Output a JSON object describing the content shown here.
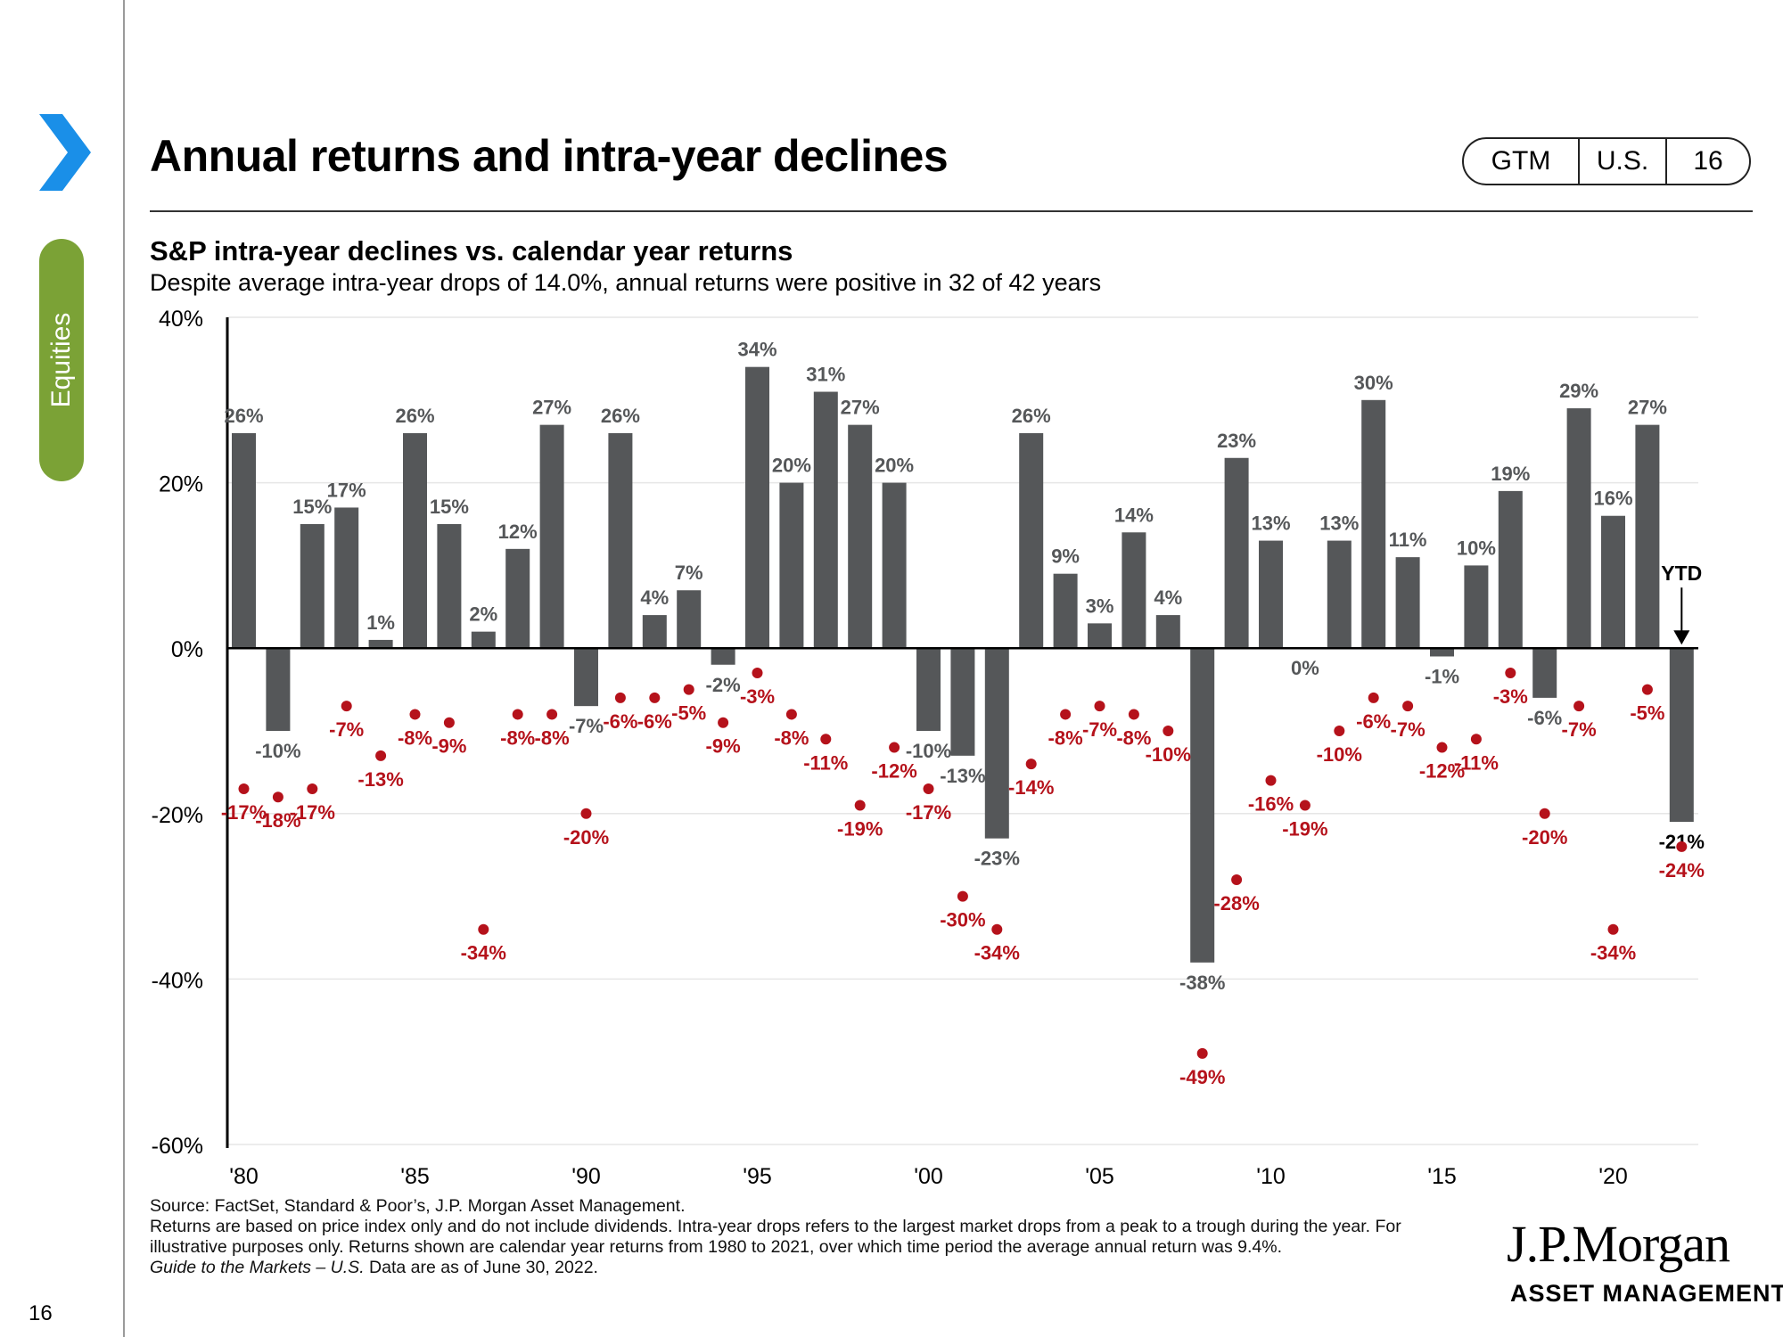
{
  "page": {
    "title": "Annual returns and intra-year declines",
    "section_tab": "Equities",
    "page_number": "16",
    "badge": {
      "guide": "GTM",
      "region": "U.S.",
      "page": "16"
    },
    "footnotes": {
      "source": "Source: FactSet, Standard & Poor’s, J.P. Morgan Asset Management.",
      "note": "Returns are based on price index only and do not include dividends. Intra-year drops refers to the largest market drops from a peak to a trough during the year. For illustrative purposes only. Returns shown are calendar year returns from 1980 to 2021, over which time period the average annual return was 9.4%.",
      "guide_title": "Guide to the Markets – U.S.",
      "as_of": " Data are as of June 30, 2022."
    },
    "logo": {
      "main": "J.P.Morgan",
      "sub": "ASSET MANAGEMENT"
    },
    "colors": {
      "accent_blue": "#1a8fe8",
      "tab_green": "#7ba236",
      "bar": "#555759",
      "dot": "#b5121b"
    }
  },
  "chart_data": {
    "type": "bar",
    "title": "S&P intra-year declines vs. calendar year returns",
    "subtitle": "Despite average intra-year drops of 14.0%, annual returns were positive in 32 of 42 years",
    "ylim": [
      -60,
      40
    ],
    "yticks": [
      "40%",
      "20%",
      "0%",
      "-20%",
      "-40%",
      "-60%"
    ],
    "ytick_values": [
      40,
      20,
      0,
      -20,
      -40,
      -60
    ],
    "xtick_labels": [
      "'80",
      "'85",
      "'90",
      "'95",
      "'00",
      "'05",
      "'10",
      "'15",
      "'20"
    ],
    "xtick_years": [
      1980,
      1985,
      1990,
      1995,
      2000,
      2005,
      2010,
      2015,
      2020
    ],
    "years": [
      1980,
      1981,
      1982,
      1983,
      1984,
      1985,
      1986,
      1987,
      1988,
      1989,
      1990,
      1991,
      1992,
      1993,
      1994,
      1995,
      1996,
      1997,
      1998,
      1999,
      2000,
      2001,
      2002,
      2003,
      2004,
      2005,
      2006,
      2007,
      2008,
      2009,
      2010,
      2011,
      2012,
      2013,
      2014,
      2015,
      2016,
      2017,
      2018,
      2019,
      2020,
      2021,
      2022
    ],
    "series": [
      {
        "name": "Calendar year returns",
        "values": [
          26,
          -10,
          15,
          17,
          1,
          26,
          15,
          2,
          12,
          27,
          -7,
          26,
          4,
          7,
          -2,
          34,
          20,
          31,
          27,
          20,
          -10,
          -13,
          -23,
          26,
          9,
          3,
          14,
          4,
          -38,
          23,
          13,
          0,
          13,
          30,
          11,
          -1,
          10,
          19,
          -6,
          29,
          16,
          27,
          -21
        ],
        "labels": [
          "26%",
          "-10%",
          "15%",
          "17%",
          "1%",
          "26%",
          "15%",
          "2%",
          "12%",
          "27%",
          "-7%",
          "26%",
          "4%",
          "7%",
          "-2%",
          "34%",
          "20%",
          "31%",
          "27%",
          "20%",
          "-10%",
          "-13%",
          "-23%",
          "26%",
          "9%",
          "3%",
          "14%",
          "4%",
          "-38%",
          "23%",
          "13%",
          "0%",
          "13%",
          "30%",
          "11%",
          "-1%",
          "10%",
          "19%",
          "-6%",
          "29%",
          "16%",
          "27%",
          "-21%"
        ]
      },
      {
        "name": "Intra-year declines",
        "values": [
          -17,
          -18,
          -17,
          -7,
          -13,
          -8,
          -9,
          -34,
          -8,
          -8,
          -20,
          -6,
          -6,
          -5,
          -9,
          -3,
          -8,
          -11,
          -19,
          -12,
          -17,
          -30,
          -34,
          -14,
          -8,
          -7,
          -8,
          -10,
          -49,
          -28,
          -16,
          -19,
          -10,
          -6,
          -7,
          -12,
          -11,
          -3,
          -20,
          -7,
          -34,
          -5,
          -24
        ],
        "labels": [
          "-17%",
          "-18%",
          "-17%",
          "-7%",
          "-13%",
          "-8%",
          "-9%",
          "-34%",
          "-8%",
          "-8%",
          "-20%",
          "-6%",
          "-6%",
          "-5%",
          "-9%",
          "-3%",
          "-8%",
          "-11%",
          "-19%",
          "-12%",
          "-17%",
          "-30%",
          "-34%",
          "-14%",
          "-8%",
          "-7%",
          "-8%",
          "-10%",
          "-49%",
          "-28%",
          "-16%",
          "-19%",
          "-10%",
          "-6%",
          "-7%",
          "-12%",
          "-11%",
          "-3%",
          "-20%",
          "-7%",
          "-34%",
          "-5%",
          "-24%"
        ]
      }
    ],
    "annotation": "YTD",
    "grid": true
  }
}
